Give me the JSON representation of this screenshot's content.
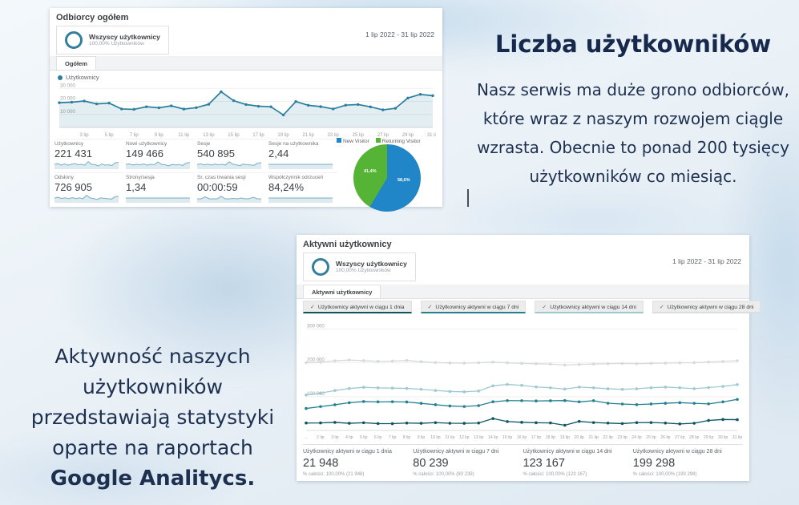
{
  "colors": {
    "accent_line": "#2a7f9e",
    "navy_heading": "#16294d",
    "pie_blue": "#2086c8",
    "pie_green": "#55b335"
  },
  "panel_overview": {
    "title": "Odbiorcy ogółem",
    "segment": {
      "name": "Wszyscy użytkownicy",
      "detail": "100,00% Użytkowników"
    },
    "date_range": "1 lip 2022 - 31 lip 2022",
    "tab": "Ogółem",
    "legend": "Użytkownicy",
    "stats": [
      {
        "label": "Użytkownicy",
        "value": "221 431",
        "spark": [
          5,
          6,
          4,
          5.5,
          4,
          5,
          6,
          4.5,
          5,
          4,
          8.5,
          5,
          4.5,
          3,
          5.5,
          4,
          4.5,
          3.5,
          7,
          7.5
        ]
      },
      {
        "label": "Nowi użytkownicy",
        "value": "149 466",
        "spark": [
          5,
          5.5,
          4.2,
          5,
          4.5,
          5.5,
          4,
          5,
          4.5,
          8,
          5,
          4.5,
          3.2,
          5,
          4.3,
          4.8,
          3.6,
          6.8,
          7.2
        ]
      },
      {
        "label": "Sesje",
        "value": "540 895",
        "spark": [
          4.8,
          5.6,
          4.3,
          5.2,
          4.1,
          5.4,
          4.4,
          5.1,
          4.2,
          8.2,
          5.2,
          4.4,
          3.4,
          5.3,
          4.5,
          4.2,
          3.8,
          6.5,
          7
        ]
      },
      {
        "label": "Sesje na użytkownika",
        "value": "2,44",
        "spark": [
          5,
          5,
          5,
          5,
          5,
          5,
          5,
          5,
          5,
          5,
          5,
          5,
          5,
          5,
          5,
          5,
          5,
          5,
          5,
          5
        ]
      },
      {
        "label": "Odsłony",
        "value": "726 905",
        "spark": [
          5,
          6,
          4.4,
          5.3,
          4.2,
          5.5,
          4.3,
          5.2,
          4.1,
          8.4,
          5.1,
          4.3,
          3.3,
          5.2,
          4.6,
          4.1,
          3.7,
          6.6,
          7.1
        ]
      },
      {
        "label": "Strony/sesja",
        "value": "1,34",
        "spark": [
          5,
          5,
          5,
          5,
          5,
          5,
          5,
          5,
          5,
          5,
          5,
          5,
          5,
          5,
          5,
          5,
          5,
          5,
          5,
          5
        ]
      },
      {
        "label": "Śr. czas trwania sesji",
        "value": "00:00:59",
        "spark": [
          4,
          4,
          6.5,
          4,
          4,
          4,
          7,
          4,
          4,
          4.5,
          4,
          5,
          4,
          4.2,
          6,
          4,
          4
        ]
      },
      {
        "label": "Współczynnik odrzuceń",
        "value": "84,24%",
        "spark": [
          5,
          5,
          5,
          5,
          5,
          5,
          5,
          5,
          5,
          5,
          5,
          5,
          5,
          5,
          5,
          5,
          5,
          5,
          5,
          5
        ]
      }
    ]
  },
  "panel_active": {
    "title": "Aktywni użytkownicy",
    "segment": {
      "name": "Wszyscy użytkownicy",
      "detail": "100,00% Użytkowników"
    },
    "date_range": "1 lip 2022 - 31 lip 2022",
    "tab": "Aktywni użytkownicy",
    "check_glyph": "✓",
    "checkboxes": [
      {
        "label": "Użytkownicy aktywni w ciągu 1 dnia",
        "color": "#0d5560"
      },
      {
        "label": "Użytkownicy aktywni w ciągu 7 dni",
        "color": "#23818f"
      },
      {
        "label": "Użytkownicy aktywni w ciągu 14 dni",
        "color": "#9ec9d1"
      },
      {
        "label": "Użytkownicy aktywni w ciągu 28 dni",
        "color": "#d9dee0"
      }
    ],
    "stats": [
      {
        "label": "Użytkownicy aktywni w ciągu 1 dnia",
        "value": "21 948",
        "sub": "% całości: 100,00% (21 948)"
      },
      {
        "label": "Użytkownicy aktywni w ciągu 7 dni",
        "value": "80 239",
        "sub": "% całości: 100,00% (80 239)"
      },
      {
        "label": "Użytkownicy aktywni w ciągu 14 dni",
        "value": "123 167",
        "sub": "% całości: 100,00% (123 167)"
      },
      {
        "label": "Użytkownicy aktywni w ciągu 28 dni",
        "value": "199 298",
        "sub": "% całości: 100,00% (199 298)"
      }
    ]
  },
  "right_text": {
    "heading": "Liczba użytkowników",
    "body": "Nasz serwis ma duże grono odbiorców, które wraz z naszym rozwojem ciągle wzrasta. Obecnie to ponad 200 tysięcy użytkowników co miesiąc."
  },
  "left_text": {
    "body": "Aktywność naszych użytkowników przedstawiają statystyki oparte na raportach",
    "brand": "Google Analitycs."
  },
  "chart_data": [
    {
      "id": "overview_users",
      "type": "line",
      "title": "Użytkownicy",
      "color": "#2a7f9e",
      "fill": "rgba(42,127,158,0.13)",
      "ylim": [
        0,
        32000
      ],
      "yticks": [
        {
          "v": 10000,
          "label": "10 000"
        },
        {
          "v": 20000,
          "label": "20 000"
        },
        {
          "v": 30000,
          "label": "30 000"
        }
      ],
      "xtick_days": [
        3,
        5,
        7,
        9,
        11,
        13,
        15,
        17,
        19,
        21,
        23,
        25,
        27,
        29,
        31
      ],
      "xtick_labels": [
        "3 lip",
        "5 lip",
        "7 lip",
        "9 lip",
        "11 lip",
        "13 lip",
        "15 lip",
        "17 lip",
        "19 lip",
        "21 lip",
        "23 lip",
        "25 lip",
        "27 lip",
        "29 lip",
        "31 lip"
      ],
      "values": [
        19000,
        19400,
        20300,
        18100,
        18700,
        14200,
        13900,
        15900,
        15100,
        16600,
        14100,
        15200,
        17800,
        27400,
        20600,
        17600,
        16300,
        15900,
        9600,
        19900,
        17000,
        16000,
        14200,
        17100,
        17600,
        15800,
        13500,
        14700,
        22600,
        25400,
        24400
      ]
    },
    {
      "id": "active_users",
      "type": "line",
      "ylim": [
        0,
        320000
      ],
      "yticks": [
        {
          "v": 100000,
          "label": "100 000"
        },
        {
          "v": 200000,
          "label": "200 000"
        },
        {
          "v": 300000,
          "label": "300 000"
        }
      ],
      "xtick_days": [
        1,
        2,
        3,
        4,
        5,
        6,
        7,
        8,
        9,
        10,
        11,
        12,
        13,
        14,
        15,
        16,
        17,
        18,
        19,
        20,
        21,
        22,
        23,
        24,
        25,
        26,
        27,
        28,
        29,
        30,
        31
      ],
      "xtick_labels": [
        "...",
        "2 lip",
        "3 lip",
        "4 lip",
        "5 lip",
        "6 lip",
        "7 lip",
        "8 lip",
        "9 lip",
        "10 lip",
        "11 lip",
        "12 lip",
        "13 lip",
        "14 lip",
        "15 lip",
        "16 lip",
        "17 lip",
        "18 lip",
        "19 lip",
        "20 lip",
        "21 lip",
        "22 lip",
        "23 lip",
        "24 lip",
        "25 lip",
        "26 lip",
        "27 lip",
        "28 lip",
        "29 lip",
        "30 lip",
        "31 lip"
      ],
      "series": [
        {
          "name": "Użytkownicy aktywni w ciągu 1 dnia",
          "color": "#0d5560",
          "values": [
            22000,
            22300,
            23800,
            21200,
            22800,
            20300,
            20100,
            21900,
            21200,
            23100,
            21300,
            21100,
            22000,
            35200,
            26300,
            24100,
            22900,
            22300,
            15400,
            26800,
            23400,
            21800,
            20300,
            23200,
            23400,
            21900,
            19400,
            21300,
            29600,
            32400,
            31800
          ]
        },
        {
          "name": "Użytkownicy aktywni w ciągu 7 dni",
          "color": "#23818f",
          "values": [
            65000,
            70500,
            76000,
            82000,
            85500,
            84500,
            85000,
            84200,
            80200,
            76200,
            72400,
            70800,
            73500,
            84800,
            88300,
            88000,
            87200,
            87800,
            88400,
            84600,
            88000,
            80500,
            78200,
            76400,
            78300,
            80400,
            82200,
            80300,
            78600,
            84500,
            91800
          ]
        },
        {
          "name": "Użytkownicy aktywni w ciągu 14 dni",
          "color": "#9ec9d1",
          "values": [
            105000,
            110500,
            118000,
            124000,
            127500,
            126000,
            125200,
            124300,
            121800,
            118200,
            115400,
            114200,
            116500,
            132000,
            136200,
            133400,
            128600,
            126200,
            122400,
            128300,
            126100,
            123400,
            121600,
            123200,
            126400,
            128200,
            126300,
            123500,
            126800,
            130400,
            135600
          ]
        },
        {
          "name": "Użytkownicy aktywni w ciągu 28 dni",
          "color": "#d5dadc",
          "values": [
            200500,
            202000,
            205800,
            208200,
            206400,
            204300,
            205100,
            207000,
            203400,
            200800,
            199600,
            199200,
            200300,
            202400,
            200100,
            198300,
            197200,
            196100,
            193400,
            195200,
            196300,
            197400,
            198200,
            197300,
            198400,
            199200,
            200100,
            200400,
            202300,
            204100,
            206200
          ]
        }
      ]
    },
    {
      "id": "visitor_type",
      "type": "pie",
      "labels": [
        "New Visitor",
        "Returning Visitor"
      ],
      "values": [
        58.6,
        41.4
      ],
      "display": [
        "58,6%",
        "41,4%"
      ],
      "colors": [
        "#2086c8",
        "#55b335"
      ]
    }
  ]
}
